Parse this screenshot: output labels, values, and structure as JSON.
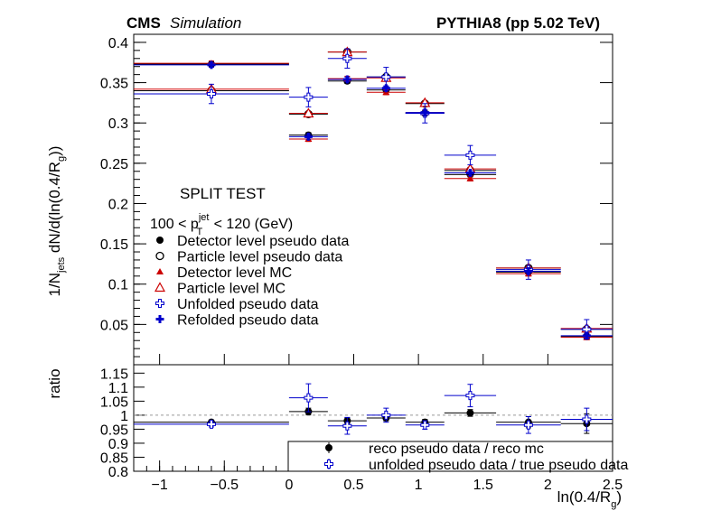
{
  "header": {
    "experiment": "CMS",
    "tag": "Simulation",
    "generator": "PYTHIA8 (pp 5.02 TeV)"
  },
  "annotations": {
    "test_label": "SPLIT TEST",
    "pt_range": "100 < p",
    "pt_sup": "jet",
    "pt_sub": "T",
    "pt_range_end": " < 120 (GeV)"
  },
  "chart_data": [
    {
      "type": "scatter",
      "title": "",
      "xlabel": "ln(0.4/R",
      "xlabel_sub": "g",
      "xlabel_end": ")",
      "ylabel": "1/N",
      "ylabel_sub": "jets",
      "ylabel_end": " dN/d(ln(0.4/R",
      "ylabel_sub2": "g",
      "ylabel_end2": "))",
      "xlim": [
        -1.2,
        2.5
      ],
      "ylim": [
        0.0,
        0.41
      ],
      "x_ticks": [
        -1,
        -0.5,
        0,
        0.5,
        1,
        1.5,
        2,
        2.5
      ],
      "x_tick_labels": [
        "−1",
        "−0.5",
        "0",
        "0.5",
        "1",
        "1.5",
        "2",
        "2.5"
      ],
      "y_ticks": [
        0.05,
        0.1,
        0.15,
        0.2,
        0.25,
        0.3,
        0.35,
        0.4
      ],
      "y_tick_labels": [
        "0.05",
        "0.1",
        "0.15",
        "0.2",
        "0.25",
        "0.3",
        "0.35",
        "0.4"
      ],
      "bins": [
        [
          -1.2,
          0.0
        ],
        [
          0.0,
          0.3
        ],
        [
          0.3,
          0.6
        ],
        [
          0.6,
          0.9
        ],
        [
          0.9,
          1.2
        ],
        [
          1.2,
          1.6
        ],
        [
          1.6,
          2.1
        ],
        [
          2.1,
          2.5
        ]
      ],
      "legend_position": "left-center",
      "series": [
        {
          "name": "Detector level pseudo data",
          "marker": "filled-circle",
          "color": "#000000",
          "y": [
            0.373,
            0.285,
            0.352,
            0.341,
            0.312,
            0.236,
            0.115,
            0.035
          ],
          "yerr": 0.003
        },
        {
          "name": "Particle level pseudo data",
          "marker": "open-circle",
          "color": "#000000",
          "y": [
            0.34,
            0.311,
            0.388,
            0.357,
            0.324,
            0.241,
            0.12,
            0.044
          ],
          "yerr": 0.002
        },
        {
          "name": "Detector level MC",
          "marker": "filled-triangle",
          "color": "#cc0000",
          "y": [
            0.374,
            0.28,
            0.355,
            0.338,
            0.313,
            0.231,
            0.113,
            0.034
          ],
          "yerr": 0.003
        },
        {
          "name": "Particle level MC",
          "marker": "open-triangle",
          "color": "#cc0000",
          "y": [
            0.342,
            0.312,
            0.388,
            0.356,
            0.325,
            0.243,
            0.12,
            0.045
          ],
          "yerr": 0.002
        },
        {
          "name": "Unfolded pseudo data",
          "marker": "open-cross",
          "color": "#0000cc",
          "y": [
            0.336,
            0.332,
            0.38,
            0.357,
            0.312,
            0.26,
            0.118,
            0.044
          ],
          "yerr": 0.012
        },
        {
          "name": "Refolded pseudo data",
          "marker": "filled-cross",
          "color": "#0000cc",
          "y": [
            0.372,
            0.283,
            0.354,
            0.343,
            0.313,
            0.238,
            0.116,
            0.036
          ],
          "yerr": 0.003
        }
      ]
    },
    {
      "type": "scatter",
      "title": "",
      "ylabel": "ratio",
      "xlim": [
        -1.2,
        2.5
      ],
      "ylim": [
        0.8,
        1.18
      ],
      "y_ticks": [
        0.8,
        0.85,
        0.9,
        0.95,
        1.0,
        1.05,
        1.1,
        1.15
      ],
      "y_tick_labels": [
        "0.8",
        "0.85",
        "0.9",
        "0.95",
        "1",
        "1.05",
        "1.1",
        "1.15"
      ],
      "reference_line": 1.0,
      "legend_position": "bottom-right",
      "series": [
        {
          "name": "reco pseudo data / reco mc",
          "marker": "filled-circle",
          "color": "#000000",
          "y": [
            0.975,
            1.013,
            0.98,
            0.99,
            0.975,
            1.008,
            0.975,
            0.97
          ],
          "yerr": [
            0.008,
            0.012,
            0.01,
            0.01,
            0.01,
            0.012,
            0.02,
            0.035
          ]
        },
        {
          "name": "unfolded pseudo data / true pseudo data",
          "marker": "open-cross",
          "color": "#0000cc",
          "y": [
            0.968,
            1.062,
            0.962,
            1.0,
            0.965,
            1.07,
            0.965,
            0.985
          ],
          "yerr": [
            0.01,
            0.05,
            0.03,
            0.025,
            0.015,
            0.04,
            0.03,
            0.04
          ]
        }
      ]
    }
  ]
}
